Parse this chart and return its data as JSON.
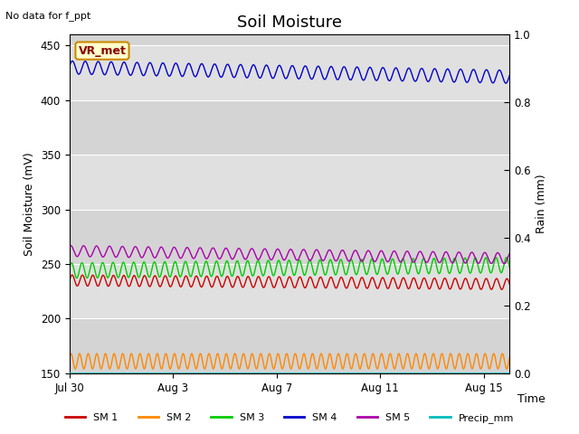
{
  "title": "Soil Moisture",
  "no_data_text": "No data for f_ppt",
  "vr_met_label": "VR_met",
  "xlabel": "Time",
  "ylabel_left": "Soil Moisture (mV)",
  "ylabel_right": "Rain (mm)",
  "ylim_left": [
    150,
    460
  ],
  "ylim_right": [
    0.0,
    1.0
  ],
  "yticks_left": [
    150,
    200,
    250,
    300,
    350,
    400,
    450
  ],
  "yticks_right": [
    0.0,
    0.2,
    0.4,
    0.6,
    0.8,
    1.0
  ],
  "series": [
    {
      "label": "SM 1",
      "color": "#cc0000",
      "base": 235,
      "amplitude": 5,
      "freq": 2.5,
      "phase": 0.0,
      "trend": -0.2
    },
    {
      "label": "SM 2",
      "color": "#ff8800",
      "base": 161,
      "amplitude": 7,
      "freq": 3.0,
      "phase": 0.5,
      "trend": 0.0
    },
    {
      "label": "SM 3",
      "color": "#00cc00",
      "base": 244,
      "amplitude": 7,
      "freq": 2.5,
      "phase": 0.3,
      "trend": 0.3
    },
    {
      "label": "SM 4",
      "color": "#0000cc",
      "base": 430,
      "amplitude": 6,
      "freq": 2.0,
      "phase": 0.2,
      "trend": -0.5
    },
    {
      "label": "SM 5",
      "color": "#aa00aa",
      "base": 262,
      "amplitude": 5,
      "freq": 2.0,
      "phase": 1.0,
      "trend": -0.4
    },
    {
      "label": "Precip_mm",
      "color": "#00bbbb",
      "base": 0.0,
      "amplitude": 0.0,
      "freq": 0.0,
      "phase": 0.0,
      "trend": 0.0,
      "is_rain": true
    }
  ],
  "band_colors": [
    "#d4d4d4",
    "#e0e0e0"
  ],
  "band_yticks": [
    150,
    200,
    250,
    300,
    350,
    400,
    450,
    460
  ],
  "x_tick_labels": [
    "Jul 30",
    "Aug 3",
    "Aug 7",
    "Aug 11",
    "Aug 15"
  ],
  "x_tick_positions": [
    0,
    4,
    8,
    12,
    16
  ],
  "x_range": [
    0,
    17
  ],
  "title_fontsize": 13,
  "axis_label_fontsize": 9,
  "tick_fontsize": 8.5,
  "legend_fontsize": 8
}
